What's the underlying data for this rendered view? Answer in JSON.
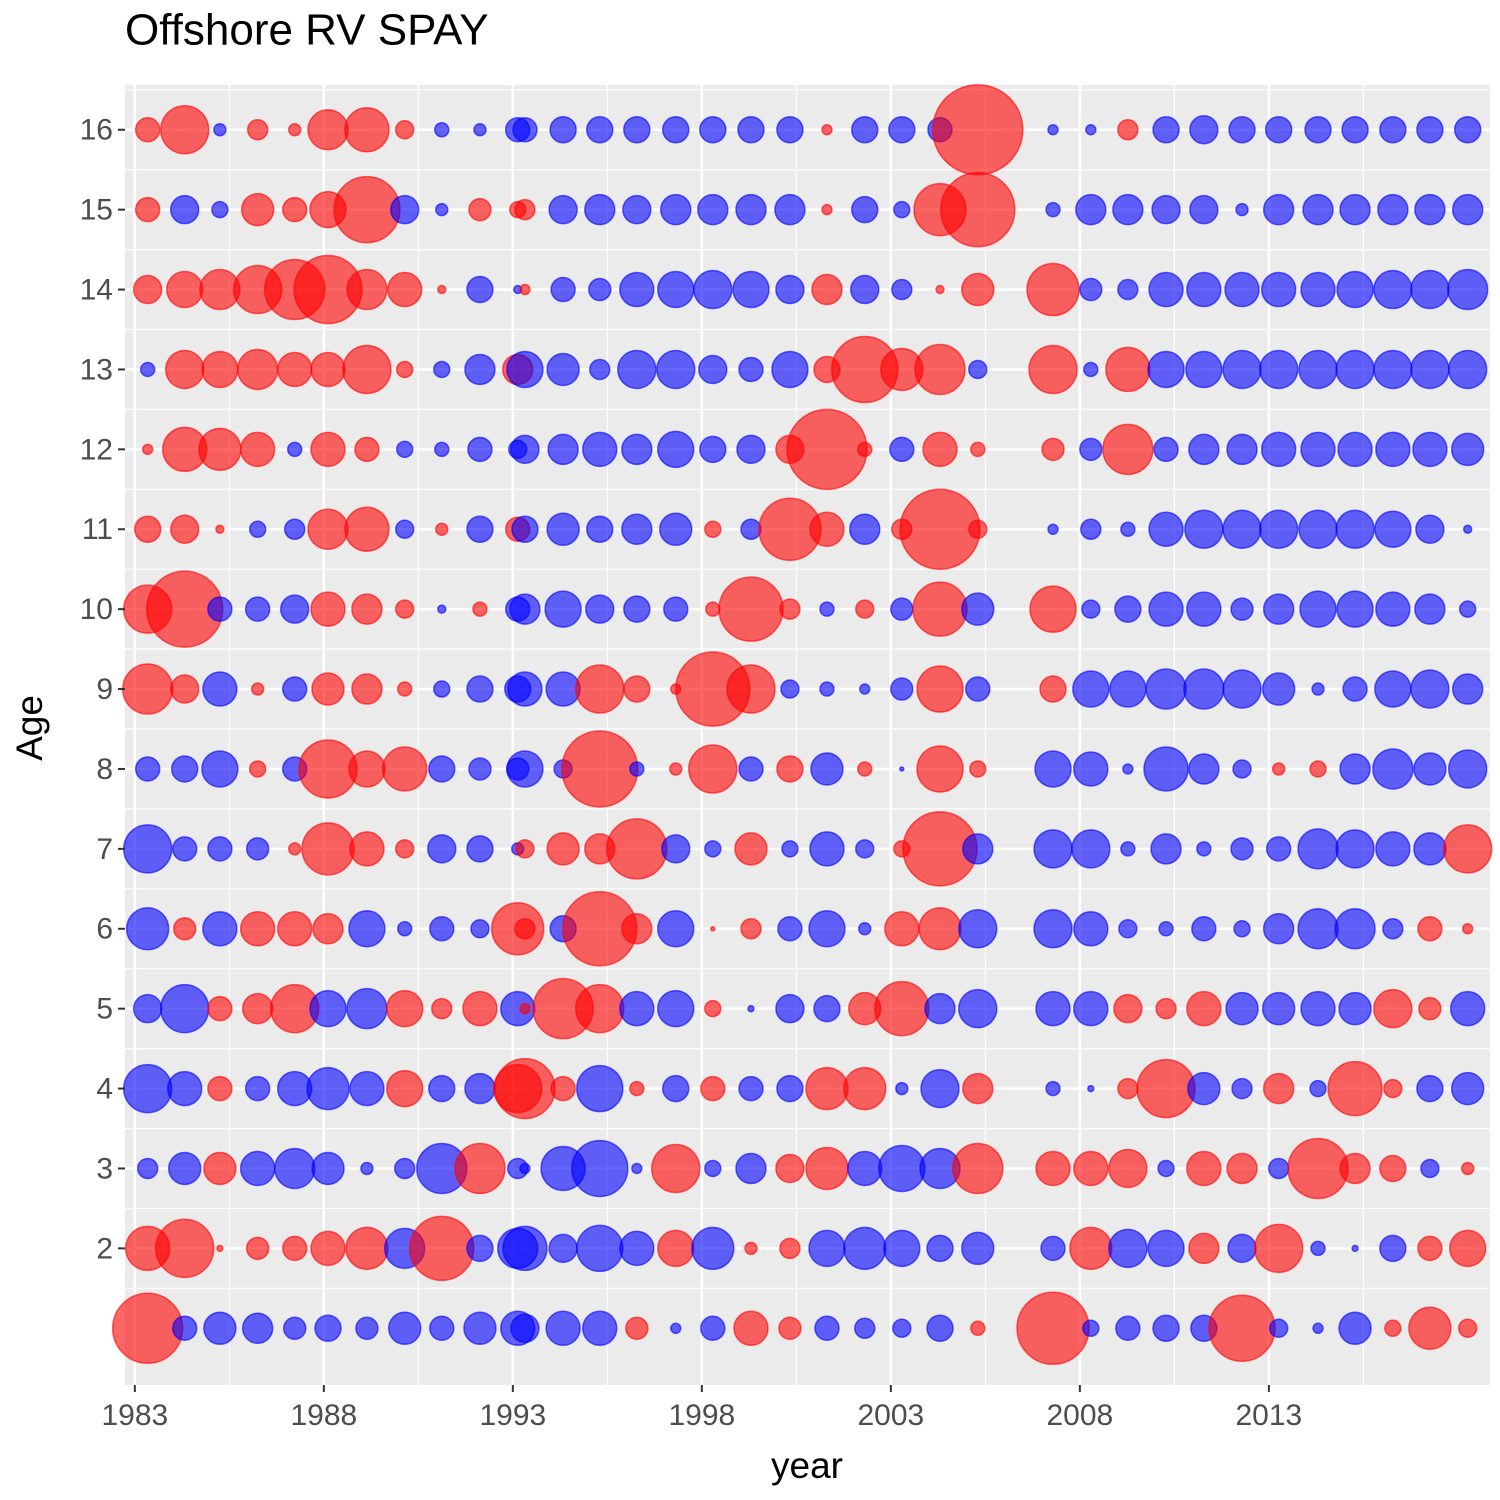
{
  "chart_data": {
    "type": "bubble",
    "title": "Offshore RV SPAY",
    "x_label": "year",
    "y_label": "Age",
    "x": [
      1983.34,
      1984.32,
      1985.25,
      1986.25,
      1987.23,
      1988.11,
      1989.14,
      1990.14,
      1991.12,
      1992.13,
      1993.13,
      1993.32,
      1994.33,
      1995.3,
      1996.28,
      1997.31,
      1998.29,
      1999.3,
      2000.33,
      2001.31,
      2002.31,
      2003.29,
      2004.3,
      2005.3,
      2007.29,
      2008.29,
      2009.27,
      2010.28,
      2011.28,
      2012.29,
      2013.26,
      2014.3,
      2015.28,
      2016.28,
      2017.26,
      2018.26
    ],
    "y": [
      1,
      2,
      3,
      4,
      5,
      6,
      7,
      8,
      9,
      10,
      11,
      12,
      13,
      14,
      15,
      16
    ],
    "values": [
      [
        3.5,
        -1.2,
        -1.6,
        -1.5,
        -1.1,
        -1.3,
        -1.1,
        -1.6,
        -1.2,
        -1.6,
        -1.7,
        -1.4,
        -1.7,
        -1.7,
        1.1,
        -0.5,
        -1.2,
        1.7,
        1.1,
        -1.2,
        -1.0,
        -0.9,
        -1.3,
        0.7,
        3.6,
        -0.8,
        -1.2,
        -1.3,
        -1.3,
        3.3,
        -0.9,
        -0.5,
        -1.6,
        0.8,
        2.1,
        0.9
      ],
      [
        2.2,
        2.9,
        0.3,
        1.1,
        1.2,
        1.7,
        2.1,
        -2.0,
        3.2,
        -1.3,
        -2.0,
        -2.2,
        -1.4,
        -2.3,
        -1.7,
        1.8,
        -2.1,
        0.6,
        1.0,
        -1.8,
        -2.1,
        -1.8,
        -1.3,
        -1.6,
        -1.2,
        2.1,
        -1.9,
        -1.8,
        1.5,
        -1.4,
        2.4,
        -0.7,
        -0.3,
        -1.3,
        1.2,
        1.8
      ],
      [
        -1.0,
        -1.6,
        1.6,
        -1.7,
        -2.0,
        -1.6,
        -0.6,
        -1.0,
        -2.5,
        2.5,
        -1.0,
        -0.5,
        -2.2,
        -2.8,
        -0.5,
        2.4,
        -0.8,
        -1.5,
        1.4,
        2.1,
        -1.7,
        -2.3,
        -2.0,
        2.5,
        1.7,
        1.7,
        1.9,
        -0.8,
        1.7,
        1.5,
        -1.0,
        3.0,
        1.5,
        1.3,
        -0.9,
        0.6
      ],
      [
        -2.4,
        -1.7,
        1.2,
        -1.2,
        -1.7,
        -2.1,
        -1.7,
        1.8,
        -1.3,
        -1.5,
        2.4,
        3.0,
        1.2,
        -2.3,
        0.7,
        -1.3,
        1.2,
        -1.2,
        -1.3,
        2.1,
        2.1,
        -0.6,
        -1.9,
        1.5,
        -0.7,
        -0.3,
        1.0,
        2.9,
        -1.6,
        -1.0,
        1.5,
        -0.8,
        2.7,
        0.9,
        -1.3,
        -1.6
      ],
      [
        -1.4,
        -2.4,
        1.2,
        1.5,
        2.4,
        -1.8,
        -2.0,
        1.8,
        1.0,
        1.7,
        -1.7,
        0.5,
        3.0,
        2.4,
        -1.7,
        -1.8,
        0.8,
        -0.3,
        -1.4,
        -1.3,
        1.6,
        2.7,
        -1.5,
        -1.9,
        -1.7,
        -1.7,
        1.4,
        1.0,
        1.7,
        -1.6,
        -1.6,
        -1.7,
        -1.6,
        1.9,
        1.1,
        -1.7
      ],
      [
        -2.1,
        1.1,
        -1.7,
        1.7,
        1.7,
        1.5,
        -1.8,
        -0.7,
        -1.2,
        -0.9,
        2.6,
        1.0,
        -1.3,
        3.7,
        1.5,
        -1.8,
        0.2,
        1.0,
        -1.2,
        -1.8,
        -0.6,
        1.7,
        2.1,
        -1.9,
        -1.9,
        -1.7,
        -0.9,
        -0.7,
        -1.2,
        -0.8,
        -1.5,
        -2.0,
        -2.0,
        -1.0,
        1.2,
        0.5
      ],
      [
        -2.4,
        -1.2,
        -1.2,
        -1.1,
        0.6,
        2.6,
        1.7,
        0.9,
        -1.4,
        -1.3,
        -0.6,
        0.9,
        1.6,
        1.5,
        3.0,
        -1.4,
        -0.8,
        1.6,
        -0.8,
        -1.7,
        -0.9,
        0.8,
        3.7,
        -1.5,
        -1.9,
        -1.9,
        -0.7,
        -1.5,
        -0.7,
        -1.1,
        -1.2,
        -2.0,
        -1.9,
        -1.7,
        -1.6,
        2.4
      ],
      [
        -1.2,
        -1.3,
        -1.8,
        0.8,
        -1.2,
        2.9,
        1.8,
        2.2,
        -1.3,
        -1.1,
        -1.1,
        -1.8,
        -0.9,
        3.8,
        -0.7,
        0.6,
        2.4,
        -1.2,
        1.3,
        -1.6,
        0.7,
        -0.2,
        2.3,
        0.8,
        -1.8,
        -1.7,
        -0.5,
        -2.2,
        -1.5,
        -0.9,
        0.6,
        0.8,
        -1.5,
        -2.0,
        -1.6,
        -1.9
      ],
      [
        2.5,
        1.4,
        -1.7,
        0.6,
        -1.2,
        1.6,
        1.5,
        0.7,
        -0.8,
        -1.3,
        -1.3,
        -1.7,
        -1.7,
        2.4,
        1.3,
        0.5,
        3.7,
        2.4,
        -0.9,
        -0.7,
        -0.5,
        -1.1,
        2.3,
        -1.2,
        1.3,
        -1.8,
        -1.8,
        -2.0,
        -2.0,
        -1.9,
        -1.6,
        -0.6,
        -1.2,
        -1.8,
        -1.9,
        -1.5
      ],
      [
        2.4,
        3.8,
        -1.2,
        -1.2,
        -1.4,
        1.7,
        1.5,
        0.9,
        -0.4,
        0.7,
        -1.2,
        -1.5,
        -1.8,
        -1.4,
        -1.3,
        -1.2,
        0.7,
        3.2,
        1.0,
        -0.7,
        0.9,
        -1.1,
        2.7,
        -1.6,
        2.3,
        -0.9,
        -1.3,
        -1.7,
        -1.7,
        -1.1,
        -1.5,
        -1.8,
        -1.8,
        -1.7,
        -1.5,
        -0.8
      ],
      [
        1.3,
        1.4,
        0.4,
        -0.8,
        -1.0,
        2.0,
        2.2,
        -0.9,
        0.6,
        -1.3,
        1.2,
        -1.3,
        -1.6,
        -1.3,
        -1.5,
        -1.6,
        0.8,
        -1.0,
        3.1,
        1.7,
        -1.5,
        1.0,
        4.0,
        0.9,
        -0.5,
        -1.0,
        -0.7,
        -1.7,
        -1.9,
        -1.9,
        -1.9,
        -1.9,
        -1.9,
        -1.8,
        -1.4,
        -0.4
      ],
      [
        0.5,
        2.2,
        2.1,
        1.7,
        -0.7,
        1.7,
        1.2,
        -0.8,
        -0.7,
        -1.2,
        -0.9,
        -1.4,
        -1.5,
        -1.7,
        -1.5,
        -1.8,
        -1.3,
        -1.4,
        1.4,
        4.0,
        0.7,
        -1.2,
        1.7,
        0.7,
        1.1,
        -1.1,
        2.5,
        -1.2,
        -1.5,
        -1.5,
        -1.7,
        -1.7,
        -1.7,
        -1.7,
        -1.7,
        -1.6
      ],
      [
        -0.7,
        1.9,
        1.8,
        2.0,
        1.7,
        1.7,
        2.4,
        0.8,
        -0.8,
        -1.5,
        1.5,
        -1.8,
        -1.6,
        -1.0,
        -1.9,
        -1.9,
        -1.4,
        -1.2,
        -1.8,
        1.3,
        3.3,
        2.1,
        2.5,
        -0.9,
        2.4,
        -0.7,
        2.2,
        -1.8,
        -1.8,
        -1.9,
        -1.9,
        -1.9,
        -1.9,
        -1.9,
        -1.9,
        -1.9
      ],
      [
        1.4,
        1.8,
        2.0,
        2.4,
        3.0,
        3.4,
        2.0,
        1.7,
        0.4,
        -1.3,
        -0.4,
        0.5,
        -1.2,
        -1.1,
        -1.7,
        -1.8,
        -1.9,
        -1.8,
        -1.4,
        1.5,
        -1.4,
        -1.0,
        0.4,
        1.6,
        2.6,
        -1.1,
        -1.0,
        -1.7,
        -1.7,
        -1.7,
        -1.7,
        -1.7,
        -1.8,
        -1.9,
        -1.9,
        -2.0
      ],
      [
        1.2,
        -1.4,
        -0.8,
        1.6,
        1.2,
        1.8,
        3.3,
        -1.4,
        -0.6,
        1.1,
        0.8,
        1.0,
        -1.4,
        -1.5,
        -1.4,
        -1.5,
        -1.5,
        -1.5,
        -1.5,
        0.5,
        -1.3,
        -0.8,
        2.6,
        3.7,
        -0.7,
        -1.5,
        -1.5,
        -1.4,
        -1.4,
        -0.6,
        -1.5,
        -1.5,
        -1.5,
        -1.5,
        -1.5,
        -1.5
      ],
      [
        1.2,
        2.4,
        -0.6,
        1.0,
        0.6,
        2.0,
        2.2,
        0.9,
        -0.7,
        -0.6,
        -1.2,
        -1.2,
        -1.3,
        -1.3,
        -1.3,
        -1.3,
        -1.3,
        -1.3,
        -1.3,
        0.5,
        -1.3,
        -1.3,
        -1.2,
        4.5,
        -0.5,
        -0.5,
        1.0,
        -1.3,
        -1.4,
        -1.3,
        -1.3,
        -1.3,
        -1.3,
        -1.3,
        -1.3,
        -1.3
      ]
    ],
    "positive_color": "#ff0000",
    "negative_color": "#0000ff",
    "alpha": 0.6,
    "xlim": [
      1982.74,
      2018.85
    ],
    "xticks": [
      1983,
      1988,
      1993,
      1998,
      2003,
      2008,
      2013
    ],
    "ylim": [
      0.29,
      16.56
    ],
    "yticks": [
      2,
      3,
      4,
      5,
      6,
      7,
      8,
      9,
      10,
      11,
      12,
      13,
      14,
      15,
      16
    ],
    "grid": true
  }
}
